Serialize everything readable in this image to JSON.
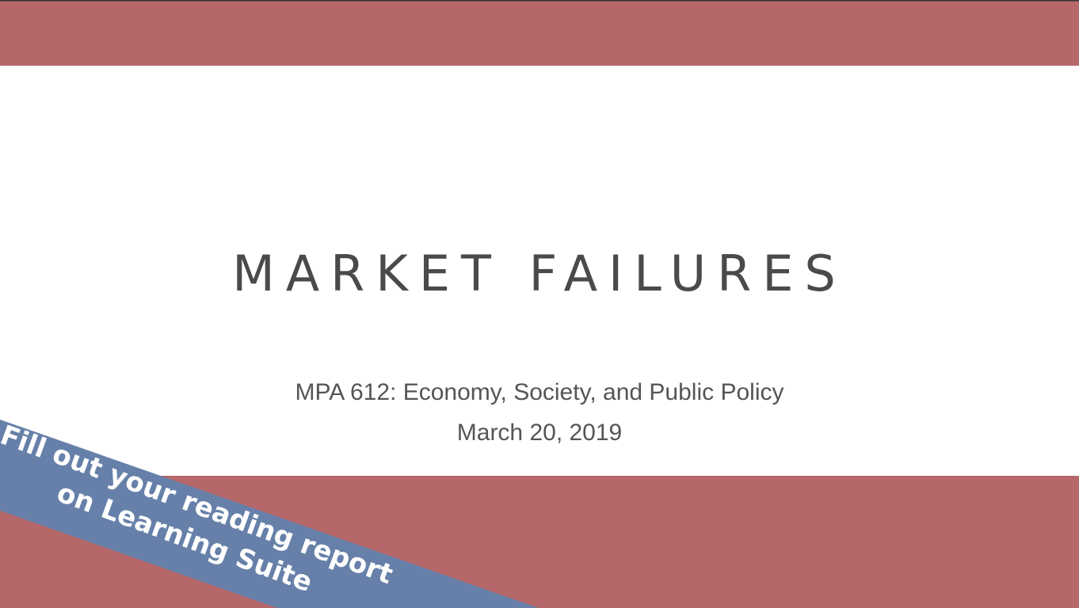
{
  "slide": {
    "title": "MARKET FAILURES",
    "subtitle": "MPA 612: Economy, Society, and Public Policy",
    "date": "March 20, 2019",
    "banner": {
      "lines": [
        "Fill out your reading report",
        "on Learning Suite"
      ]
    }
  }
}
